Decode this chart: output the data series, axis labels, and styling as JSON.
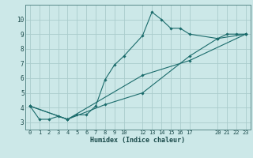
{
  "xlabel": "Humidex (Indice chaleur)",
  "bg_color": "#cce8e8",
  "grid_color": "#aacccc",
  "line_color": "#1a6b6b",
  "marker_color": "#1a6b6b",
  "line1": [
    [
      0,
      4.1
    ],
    [
      1,
      3.2
    ],
    [
      2,
      3.2
    ],
    [
      3,
      3.4
    ],
    [
      4,
      3.2
    ],
    [
      5,
      3.5
    ],
    [
      6,
      3.5
    ],
    [
      7,
      4.1
    ],
    [
      8,
      5.9
    ],
    [
      9,
      6.9
    ],
    [
      10,
      7.5
    ],
    [
      12,
      8.9
    ],
    [
      13,
      10.5
    ],
    [
      14,
      10.0
    ],
    [
      15,
      9.4
    ],
    [
      16,
      9.4
    ],
    [
      17,
      9.0
    ],
    [
      20,
      8.7
    ],
    [
      21,
      9.0
    ],
    [
      22,
      9.0
    ],
    [
      23,
      9.0
    ]
  ],
  "line2": [
    [
      0,
      4.1
    ],
    [
      4,
      3.2
    ],
    [
      12,
      6.2
    ],
    [
      17,
      7.2
    ],
    [
      23,
      9.0
    ]
  ],
  "line3": [
    [
      0,
      4.1
    ],
    [
      4,
      3.2
    ],
    [
      8,
      4.2
    ],
    [
      12,
      5.0
    ],
    [
      17,
      7.5
    ],
    [
      20,
      8.7
    ],
    [
      23,
      9.0
    ]
  ],
  "xlim": [
    -0.5,
    23.5
  ],
  "ylim": [
    2.5,
    11.0
  ],
  "xticks": [
    0,
    1,
    2,
    3,
    4,
    5,
    6,
    7,
    8,
    9,
    10,
    12,
    13,
    14,
    15,
    16,
    17,
    20,
    21,
    22,
    23
  ],
  "yticks": [
    3,
    4,
    5,
    6,
    7,
    8,
    9,
    10
  ],
  "tick_fontsize": 5.0,
  "xlabel_fontsize": 6.0
}
